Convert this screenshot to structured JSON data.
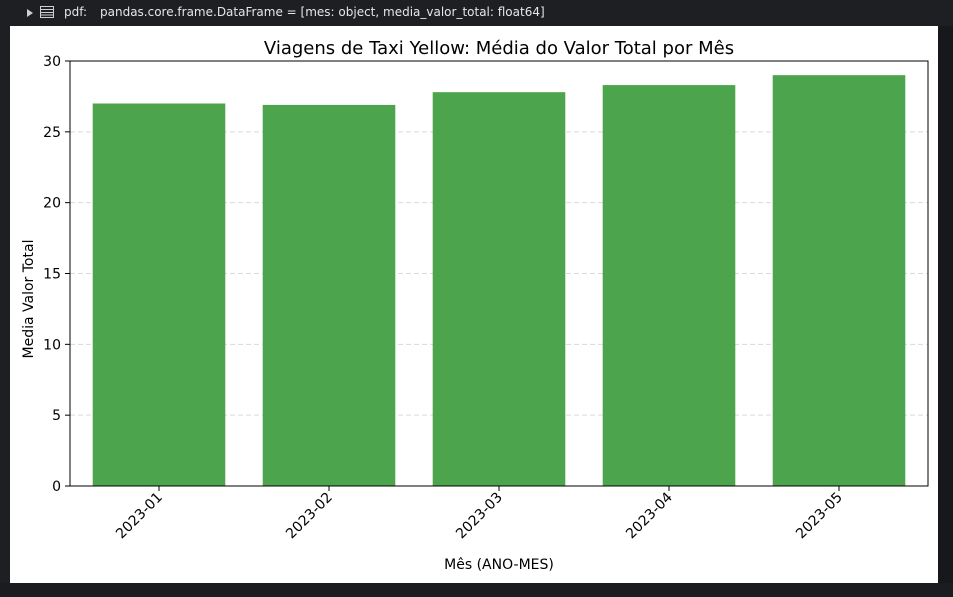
{
  "variable": {
    "name": "pdf:",
    "type_info": "pandas.core.frame.DataFrame = [mes: object, media_valor_total: float64]"
  },
  "icons": {
    "expand": "triangle-right-icon",
    "dataframe": "table-icon"
  },
  "colors": {
    "bar": "#4ca54c",
    "grid": "#d9d9d9",
    "background": "#ffffff",
    "page": "#1e1f22"
  },
  "chart_data": {
    "type": "bar",
    "title": "Viagens de Taxi Yellow: Média do Valor Total por Mês",
    "xlabel": "Mês (ANO-MES)",
    "ylabel": "Media Valor Total",
    "categories": [
      "2023-01",
      "2023-02",
      "2023-03",
      "2023-04",
      "2023-05"
    ],
    "values": [
      27.0,
      26.9,
      27.8,
      28.3,
      29.0
    ],
    "ylim": [
      0,
      30
    ],
    "yticks": [
      0,
      5,
      10,
      15,
      20,
      25,
      30
    ],
    "grid": "horizontal dashed",
    "xtick_rotation": 45
  }
}
